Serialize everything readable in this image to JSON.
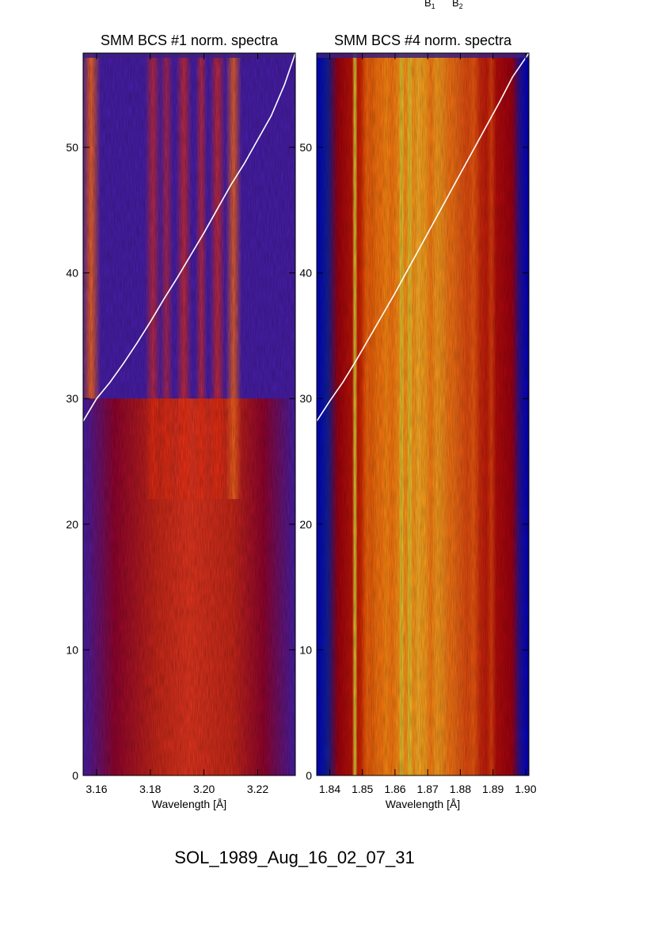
{
  "top_labels": [
    "B",
    "B"
  ],
  "top_label_subscripts": [
    "1",
    "2"
  ],
  "caption": "SOL_1989_Aug_16_02_07_31",
  "chart_data": [
    {
      "type": "heatmap",
      "title": "SMM BCS #1 norm. spectra",
      "xlabel": "Wavelength [Å]",
      "ylabel": "",
      "xlim": [
        3.155,
        3.234
      ],
      "ylim": [
        0,
        57.5
      ],
      "xticks": [
        3.16,
        3.18,
        3.2,
        3.22
      ],
      "xtick_labels": [
        "3.16",
        "3.18",
        "3.20",
        "3.22"
      ],
      "yticks": [
        0,
        10,
        20,
        30,
        40,
        50
      ],
      "ytick_labels": [
        "0",
        "10",
        "20",
        "30",
        "40",
        "50"
      ],
      "colormap": [
        "#2a0a6e",
        "#4b1fb0",
        "#6a10a0",
        "#a00010",
        "#d01800",
        "#ff3a10",
        "#ff7a20"
      ],
      "lines": [
        {
          "x": 3.158,
          "width": 0.0035,
          "intensity": 0.95,
          "y_from": 30,
          "y_to": 57.5
        },
        {
          "x": 3.181,
          "width": 0.003,
          "intensity": 0.65,
          "y_from": 22,
          "y_to": 57.5
        },
        {
          "x": 3.186,
          "width": 0.0025,
          "intensity": 0.55,
          "y_from": 22,
          "y_to": 57.5
        },
        {
          "x": 3.1925,
          "width": 0.003,
          "intensity": 0.7,
          "y_from": 22,
          "y_to": 57.5
        },
        {
          "x": 3.199,
          "width": 0.0022,
          "intensity": 0.65,
          "y_from": 22,
          "y_to": 57.5
        },
        {
          "x": 3.205,
          "width": 0.003,
          "intensity": 0.7,
          "y_from": 22,
          "y_to": 57.5
        },
        {
          "x": 3.211,
          "width": 0.003,
          "intensity": 0.9,
          "y_from": 22,
          "y_to": 57.5
        }
      ],
      "overlay_curve": {
        "color": "#ffffff",
        "x": [
          3.155,
          3.16,
          3.165,
          3.17,
          3.175,
          3.18,
          3.185,
          3.19,
          3.195,
          3.2,
          3.205,
          3.21,
          3.215,
          3.22,
          3.225,
          3.23,
          3.234
        ],
        "y": [
          28.2,
          30.0,
          31.3,
          32.8,
          34.4,
          36.1,
          37.9,
          39.6,
          41.4,
          43.2,
          45.1,
          47.0,
          48.7,
          50.6,
          52.5,
          55.0,
          57.5
        ]
      }
    },
    {
      "type": "heatmap",
      "title": "SMM BCS #4 norm. spectra",
      "xlabel": "Wavelength [Å]",
      "ylabel": "",
      "xlim": [
        1.836,
        1.901
      ],
      "ylim": [
        0,
        57.5
      ],
      "xticks": [
        1.84,
        1.85,
        1.86,
        1.87,
        1.88,
        1.89,
        1.9
      ],
      "xtick_labels": [
        "1.84",
        "1.85",
        "1.86",
        "1.87",
        "1.88",
        "1.89",
        "1.90"
      ],
      "yticks": [
        0,
        10,
        20,
        30,
        40,
        50
      ],
      "ytick_labels": [
        "0",
        "10",
        "20",
        "30",
        "40",
        "50"
      ],
      "colormap": [
        "#0000c8",
        "#1010a0",
        "#a00010",
        "#d01800",
        "#ff6a00",
        "#ffa820",
        "#ffd040",
        "#a8b820"
      ],
      "lines": [
        {
          "x": 1.8477,
          "width": 0.0008,
          "intensity": 1.0
        },
        {
          "x": 1.8515,
          "width": 0.0018,
          "intensity": 0.8
        },
        {
          "x": 1.8555,
          "width": 0.002,
          "intensity": 0.85
        },
        {
          "x": 1.859,
          "width": 0.0018,
          "intensity": 0.8
        },
        {
          "x": 1.862,
          "width": 0.0008,
          "intensity": 0.95
        },
        {
          "x": 1.8645,
          "width": 0.0008,
          "intensity": 0.95
        },
        {
          "x": 1.8672,
          "width": 0.001,
          "intensity": 0.9
        },
        {
          "x": 1.871,
          "width": 0.0018,
          "intensity": 0.8
        },
        {
          "x": 1.877,
          "width": 0.002,
          "intensity": 0.7
        },
        {
          "x": 1.884,
          "width": 0.002,
          "intensity": 0.6
        },
        {
          "x": 1.8895,
          "width": 0.0015,
          "intensity": 0.5
        }
      ],
      "overlay_curve": {
        "color": "#ffffff",
        "x": [
          1.836,
          1.84,
          1.844,
          1.848,
          1.852,
          1.856,
          1.86,
          1.864,
          1.868,
          1.872,
          1.876,
          1.88,
          1.884,
          1.888,
          1.892,
          1.896,
          1.901
        ],
        "y": [
          28.2,
          29.8,
          31.3,
          33.0,
          34.8,
          36.6,
          38.4,
          40.3,
          42.2,
          44.1,
          46.0,
          47.9,
          49.8,
          51.7,
          53.6,
          55.6,
          57.5
        ]
      }
    }
  ]
}
